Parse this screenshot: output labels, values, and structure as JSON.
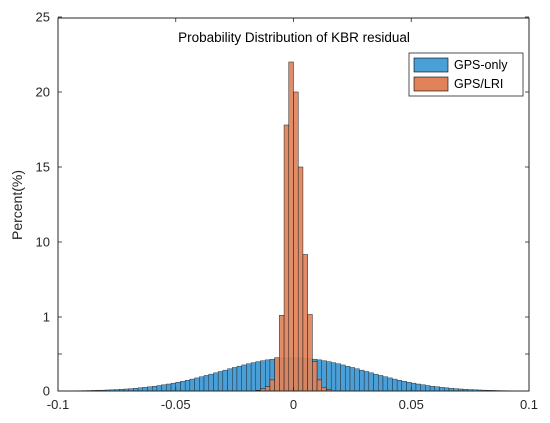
{
  "chart_data": {
    "type": "bar",
    "title": "Probability Distribution of KBR residual",
    "xlabel": "",
    "ylabel": "Percent(%)",
    "xlim": [
      -0.1,
      0.1
    ],
    "y_ticks": [
      0,
      0.5,
      1,
      10,
      15,
      20,
      25
    ],
    "y_tick_labels": [
      "0",
      "",
      "1",
      "10",
      "15",
      "20",
      "25"
    ],
    "x_ticks": [
      -0.1,
      -0.05,
      0,
      0.05,
      0.1
    ],
    "x_tick_labels": [
      "-0.1",
      "-0.05",
      "0",
      "0.05",
      "0.1"
    ],
    "bin_width": 0.002,
    "legend_position": "top-right",
    "series": [
      {
        "name": "GPS-only",
        "color": "#4a9fd6",
        "distribution": "normal",
        "mean": 0.0,
        "std": 0.03,
        "peak_percent": 0.45
      },
      {
        "name": "GPS/LRI",
        "color": "#e0835a",
        "bin_centers": [
          -0.015,
          -0.013,
          -0.011,
          -0.009,
          -0.007,
          -0.005,
          -0.003,
          -0.001,
          0.001,
          0.003,
          0.005,
          0.007,
          0.009,
          0.011,
          0.013,
          0.015
        ],
        "values": [
          0.01,
          0.03,
          0.06,
          0.15,
          0.45,
          1.2,
          17.8,
          22.0,
          20.0,
          15.0,
          8.5,
          1.3,
          0.4,
          0.15,
          0.05,
          0.02
        ]
      }
    ]
  }
}
